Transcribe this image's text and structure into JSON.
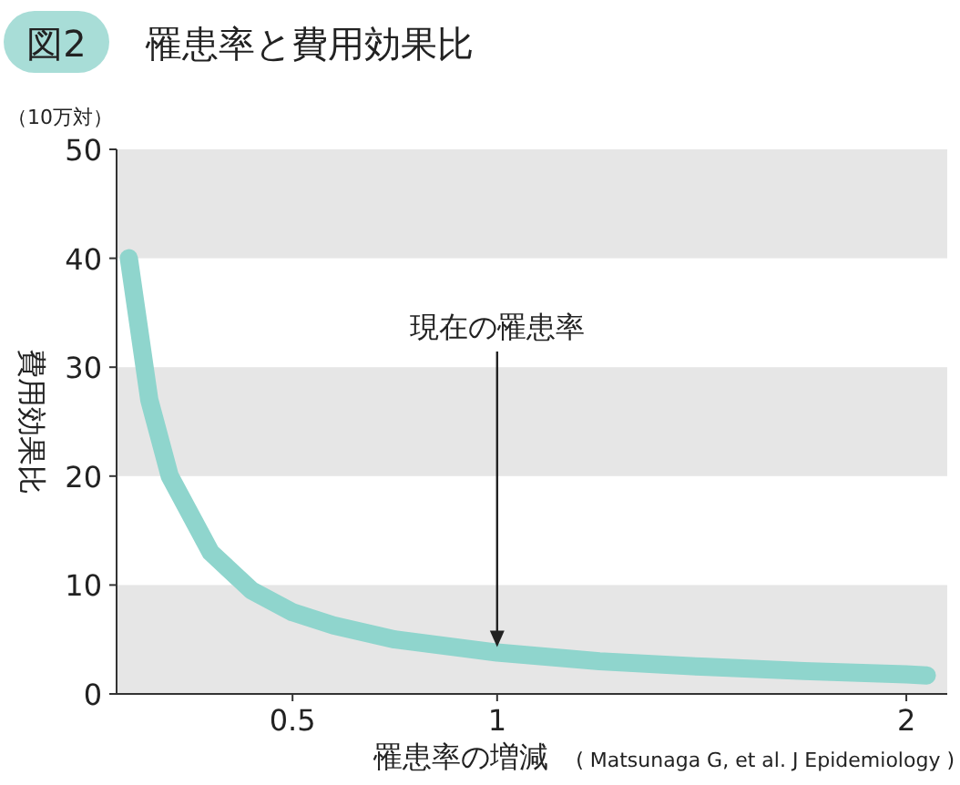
{
  "chart_data": {
    "type": "line",
    "title": "罹患率と費用効果比",
    "xlabel": "罹患率の増減",
    "ylabel": "費用効果比",
    "annotations": [
      "図2",
      "（10万対）",
      "現在の罹患率",
      "( Matsunaga G, et al. J Epidemiology )"
    ],
    "x": [
      0.1,
      0.15,
      0.2,
      0.3,
      0.4,
      0.5,
      0.6,
      0.75,
      1,
      1.25,
      1.5,
      1.75,
      2,
      2.05
    ],
    "series": [
      {
        "color": "#8fd5cd",
        "values": [
          40,
          27,
          20,
          13,
          9.5,
          7.5,
          6.3,
          5,
          3.8,
          3,
          2.5,
          2.1,
          1.8,
          1.7
        ]
      }
    ],
    "xlim": [
      0.07,
      2.1
    ],
    "xticks": [
      0.5,
      1,
      2
    ],
    "ylim": [
      0,
      50
    ],
    "yticks": [
      0,
      10,
      20,
      30,
      40,
      50
    ],
    "bands": [
      {
        "axis": "y",
        "from": 0,
        "to": 10,
        "color": "#e6e6e6"
      },
      {
        "axis": "y",
        "from": 20,
        "to": 30,
        "color": "#e6e6e6"
      },
      {
        "axis": "y",
        "from": 40,
        "to": 50,
        "color": "#e6e6e6"
      }
    ],
    "line_style": "solid"
  }
}
